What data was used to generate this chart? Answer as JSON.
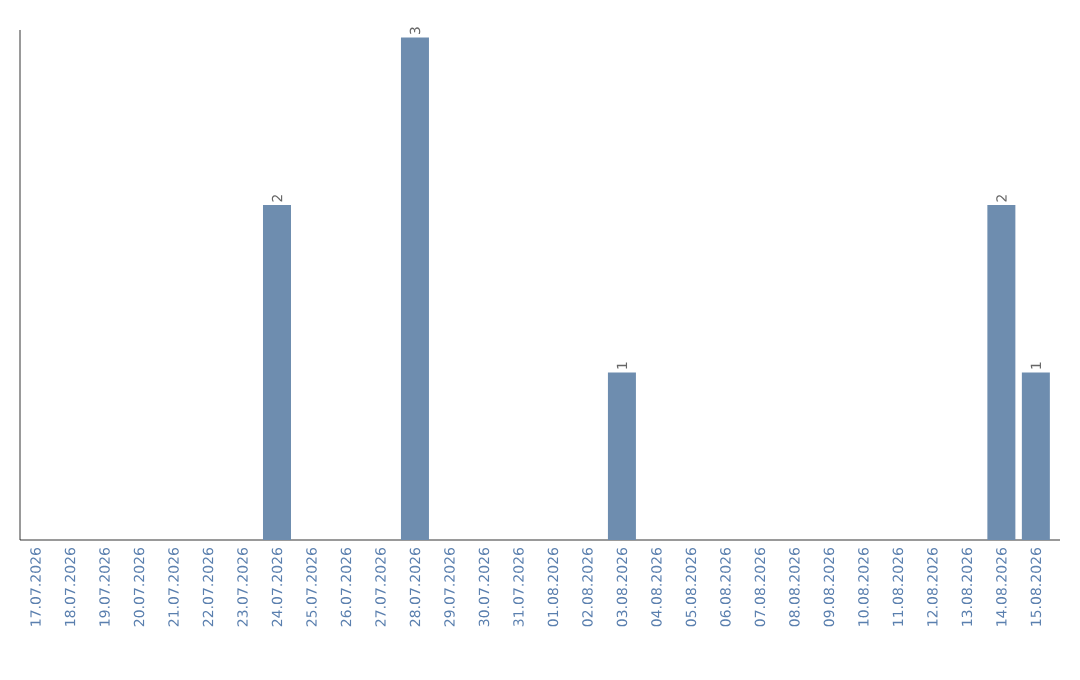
{
  "chart_data": {
    "type": "bar",
    "categories": [
      "17.07.2026",
      "18.07.2026",
      "19.07.2026",
      "20.07.2026",
      "21.07.2026",
      "22.07.2026",
      "23.07.2026",
      "24.07.2026",
      "25.07.2026",
      "26.07.2026",
      "27.07.2026",
      "28.07.2026",
      "29.07.2026",
      "30.07.2026",
      "31.07.2026",
      "01.08.2026",
      "02.08.2026",
      "03.08.2026",
      "04.08.2026",
      "05.08.2026",
      "06.08.2026",
      "07.08.2026",
      "08.08.2026",
      "09.08.2026",
      "10.08.2026",
      "11.08.2026",
      "12.08.2026",
      "13.08.2026",
      "14.08.2026",
      "15.08.2026"
    ],
    "values": [
      0,
      0,
      0,
      0,
      0,
      0,
      0,
      2,
      0,
      0,
      0,
      3,
      0,
      0,
      0,
      0,
      0,
      1,
      0,
      0,
      0,
      0,
      0,
      0,
      0,
      0,
      0,
      0,
      2,
      1
    ],
    "value_labels": [
      null,
      null,
      null,
      null,
      null,
      null,
      null,
      "2",
      null,
      null,
      null,
      "3",
      null,
      null,
      null,
      null,
      null,
      "1",
      null,
      null,
      null,
      null,
      null,
      null,
      null,
      null,
      null,
      null,
      "2",
      "1"
    ],
    "color": "#6e8daf"
  }
}
